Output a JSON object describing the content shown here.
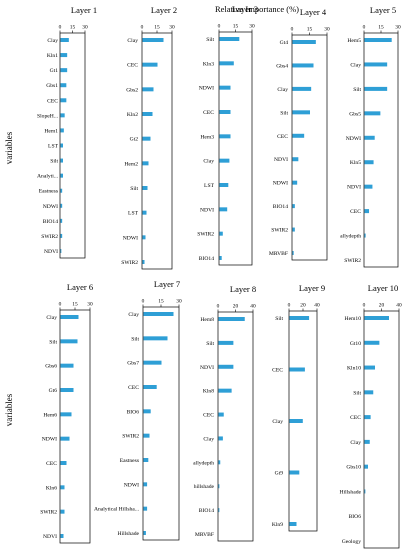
{
  "figure": {
    "title": "Relative Importance (%)",
    "row_label": "variables",
    "bar_color": "#2e9fd6"
  },
  "chart_data": [
    {
      "type": "bar",
      "title": "Layer 1",
      "xlim": [
        0,
        30
      ],
      "ticks": [
        0,
        15,
        30
      ],
      "tick_labels": [
        "0",
        "15",
        "30"
      ],
      "categories": [
        "Clay",
        "Kln1",
        "Gt1",
        "Gbs1",
        "CEC",
        "SlopeH...",
        "Hem1",
        "LST",
        "Silt",
        "Analyti...",
        "Eastness",
        "NDWI",
        "BIO14",
        "SWIR2",
        "NDVI"
      ],
      "values": [
        10,
        8,
        8,
        7,
        7,
        5,
        4,
        3,
        3,
        3,
        2,
        2,
        2,
        2,
        1
      ]
    },
    {
      "type": "bar",
      "title": "Layer 2",
      "xlim": [
        0,
        30
      ],
      "ticks": [
        0,
        15,
        30
      ],
      "tick_labels": [
        "0",
        "15",
        "30"
      ],
      "categories": [
        "Clay",
        "CEC",
        "Gbs2",
        "Kln2",
        "Gt2",
        "Hem2",
        "Silt",
        "LST",
        "NDWI",
        "SWIR2"
      ],
      "values": [
        21,
        15,
        11,
        10,
        8,
        6,
        5,
        4,
        3,
        2
      ]
    },
    {
      "type": "bar",
      "title": "Layer 3",
      "xlim": [
        0,
        30
      ],
      "ticks": [
        0,
        15,
        30
      ],
      "tick_labels": [
        "0",
        "15",
        "30"
      ],
      "categories": [
        "Silt",
        "Kln3",
        "NDWI",
        "CEC",
        "Hem3",
        "Clay",
        "LST",
        "NDVI",
        "SWIR2",
        "BIO14"
      ],
      "values": [
        18,
        13,
        10,
        10,
        10,
        9,
        8,
        7,
        3,
        2
      ]
    },
    {
      "type": "bar",
      "title": "Layer 4",
      "xlim": [
        0,
        30
      ],
      "ticks": [
        0,
        15,
        30
      ],
      "tick_labels": [
        "0",
        "15",
        "30"
      ],
      "categories": [
        "Gt4",
        "Gbs4",
        "Clay",
        "Silt",
        "CEC",
        "NDVI",
        "NDWI",
        "BIO14",
        "SWIR2",
        "MRVBF"
      ],
      "values": [
        20,
        18,
        16,
        15,
        10,
        5,
        4,
        2,
        2,
        1
      ]
    },
    {
      "type": "bar",
      "title": "Layer 5",
      "xlim": [
        0,
        30
      ],
      "ticks": [
        0,
        15,
        30
      ],
      "tick_labels": [
        "0",
        "15",
        "30"
      ],
      "categories": [
        "Hem5",
        "Clay",
        "Silt",
        "Gbs5",
        "NDWI",
        "Kln5",
        "NDVI",
        "CEC",
        "allydepth",
        "SWIR2"
      ],
      "values": [
        24,
        20,
        20,
        14,
        9,
        8,
        7,
        4,
        1,
        0
      ]
    },
    {
      "type": "bar",
      "title": "Layer 6",
      "xlim": [
        0,
        30
      ],
      "ticks": [
        0,
        15,
        30
      ],
      "tick_labels": [
        "0",
        "15",
        "30"
      ],
      "categories": [
        "Clay",
        "Silt",
        "Gbs6",
        "Gt6",
        "Hem6",
        "NDWI",
        "CEC",
        "Kln6",
        "SWIR2",
        "NDVI"
      ],
      "values": [
        18,
        17,
        13,
        13,
        11,
        9,
        6,
        4,
        4,
        3
      ]
    },
    {
      "type": "bar",
      "title": "Layer 7",
      "xlim": [
        0,
        30
      ],
      "ticks": [
        0,
        15,
        30
      ],
      "tick_labels": [
        "0",
        "15",
        "30"
      ],
      "categories": [
        "Clay",
        "Silt",
        "Gbs7",
        "CEC",
        "BIO6",
        "SWIR2",
        "Eastness",
        "NDWI",
        "Analytical Hillsha...",
        "Hillshade"
      ],
      "values": [
        25,
        20,
        15,
        11,
        6,
        5,
        4,
        3,
        3,
        2
      ]
    },
    {
      "type": "bar",
      "title": "Layer 8",
      "xlim": [
        0,
        40
      ],
      "ticks": [
        0,
        20,
        40
      ],
      "tick_labels": [
        "0",
        "20",
        "40"
      ],
      "categories": [
        "Hem8",
        "Silt",
        "NDVI",
        "Kln8",
        "CEC",
        "Clay",
        "allydepth",
        "hillshade",
        "BIO14",
        "MRVBF"
      ],
      "values": [
        30,
        17,
        17,
        15,
        6,
        5,
        2,
        1,
        1,
        0
      ]
    },
    {
      "type": "bar",
      "title": "Layer 9",
      "xlim": [
        0,
        40
      ],
      "ticks": [
        0,
        20,
        40
      ],
      "tick_labels": [
        "0",
        "20",
        "40"
      ],
      "categories": [
        "Silt",
        "CEC",
        "Clay",
        "Gt9",
        "Kln9"
      ],
      "values": [
        28,
        22,
        19,
        14,
        10
      ]
    },
    {
      "type": "bar",
      "title": "Layer 10",
      "xlim": [
        0,
        40
      ],
      "ticks": [
        0,
        20,
        40
      ],
      "tick_labels": [
        "0",
        "20",
        "40"
      ],
      "categories": [
        "Hem10",
        "Gt10",
        "Kln10",
        "Silt",
        "CEC",
        "Clay",
        "Gbs10",
        "Hillshade",
        "BIO6",
        "Geology"
      ],
      "values": [
        28,
        17,
        12,
        10,
        7,
        6,
        4,
        1,
        0,
        0
      ]
    }
  ]
}
